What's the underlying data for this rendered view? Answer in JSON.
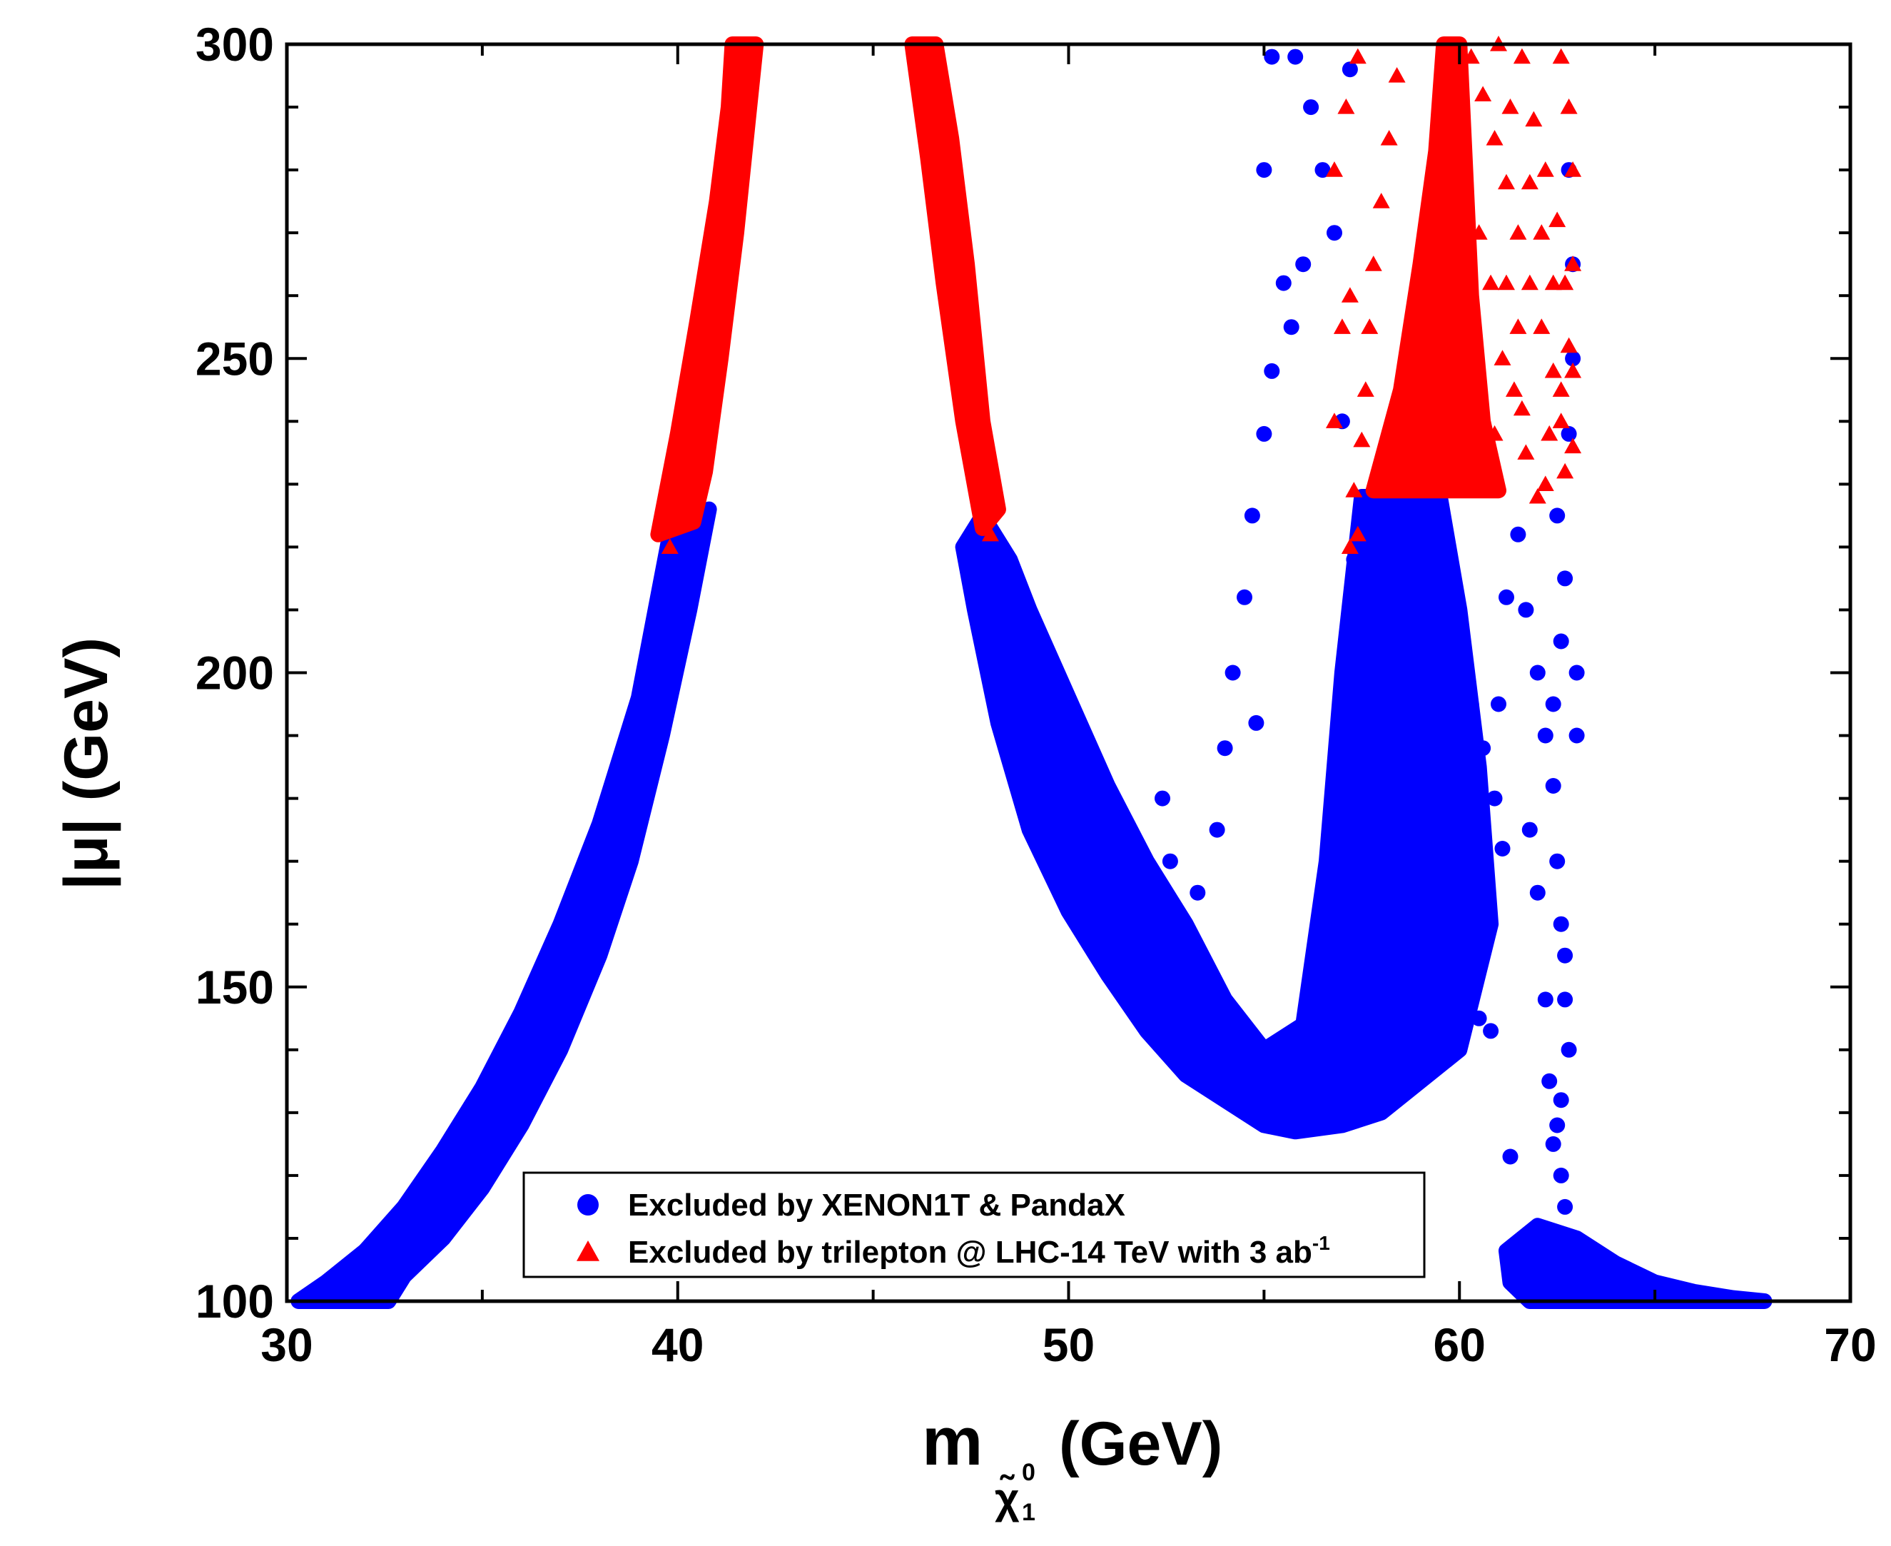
{
  "chart_data": {
    "type": "scatter",
    "xlabel": {
      "main": "m",
      "subscript_symbol": "χ̃",
      "subscript_super": "0",
      "subscript_sub": "1",
      "unit": "(GeV)"
    },
    "ylabel": "|μ| (GeV)",
    "xlim": [
      30,
      70
    ],
    "ylim": [
      100,
      300
    ],
    "x_ticks": [
      30,
      40,
      50,
      60,
      70
    ],
    "y_ticks": [
      100,
      150,
      200,
      250,
      300
    ],
    "x_minor_step": 5,
    "y_minor_step": 10,
    "legend_position": "bottom-center",
    "series": [
      {
        "name": "Excluded by XENON1T & PandaX",
        "legend_label": "Excluded by XENON1T & PandaX",
        "marker": "circle",
        "color": "#0000ff",
        "regions": [
          {
            "name": "left-band",
            "points": [
              [
                30.3,
                100
              ],
              [
                31,
                103
              ],
              [
                32,
                108
              ],
              [
                33,
                115
              ],
              [
                34,
                124
              ],
              [
                35,
                134
              ],
              [
                36,
                146
              ],
              [
                37,
                160
              ],
              [
                38,
                176
              ],
              [
                39,
                196
              ],
              [
                39.8,
                222
              ],
              [
                40.5,
                224
              ],
              [
                40.8,
                226
              ],
              [
                40.3,
                210
              ],
              [
                39.6,
                190
              ],
              [
                38.8,
                170
              ],
              [
                38,
                155
              ],
              [
                37,
                140
              ],
              [
                36,
                128
              ],
              [
                35,
                118
              ],
              [
                34,
                110
              ],
              [
                33,
                104
              ],
              [
                32.6,
                100
              ]
            ]
          },
          {
            "name": "middle-band",
            "points": [
              [
                47.8,
                225
              ],
              [
                48.5,
                218
              ],
              [
                49,
                210
              ],
              [
                50,
                196
              ],
              [
                51,
                182
              ],
              [
                52,
                170
              ],
              [
                53,
                160
              ],
              [
                54,
                148
              ],
              [
                55,
                140
              ],
              [
                56,
                144
              ],
              [
                56.6,
                170
              ],
              [
                57,
                200
              ],
              [
                57.5,
                228
              ],
              [
                59.5,
                228
              ],
              [
                60,
                210
              ],
              [
                60.5,
                185
              ],
              [
                60.8,
                160
              ],
              [
                60,
                140
              ],
              [
                58,
                130
              ],
              [
                57,
                128
              ],
              [
                55.8,
                127
              ],
              [
                55,
                128
              ],
              [
                54,
                132
              ],
              [
                53,
                136
              ],
              [
                52,
                143
              ],
              [
                51,
                152
              ],
              [
                50,
                162
              ],
              [
                49,
                175
              ],
              [
                48.2,
                192
              ],
              [
                47.6,
                210
              ],
              [
                47.3,
                220
              ]
            ]
          },
          {
            "name": "right-tail",
            "points": [
              [
                61.2,
                108
              ],
              [
                62,
                112
              ],
              [
                63,
                110
              ],
              [
                64,
                106
              ],
              [
                65,
                103
              ],
              [
                66,
                101.5
              ],
              [
                67,
                100.5
              ],
              [
                67.8,
                100
              ],
              [
                61.8,
                100
              ],
              [
                61.3,
                103
              ]
            ]
          }
        ],
        "scatter_points": [
          [
            53.3,
            165
          ],
          [
            53.8,
            175
          ],
          [
            54,
            188
          ],
          [
            54.2,
            200
          ],
          [
            54.5,
            212
          ],
          [
            54.7,
            225
          ],
          [
            55,
            238
          ],
          [
            55.2,
            248
          ],
          [
            55.5,
            262
          ],
          [
            55,
            280
          ],
          [
            55.2,
            298
          ],
          [
            55.8,
            298
          ],
          [
            56.2,
            290
          ],
          [
            56.5,
            280
          ],
          [
            56.8,
            270
          ],
          [
            57.2,
            296
          ],
          [
            56,
            265
          ],
          [
            55.7,
            255
          ],
          [
            57,
            240
          ],
          [
            54.8,
            192
          ],
          [
            52.6,
            170
          ],
          [
            52.4,
            180
          ],
          [
            53.1,
            152
          ],
          [
            57.3,
            218
          ],
          [
            58,
            210
          ],
          [
            58.3,
            195
          ],
          [
            58.5,
            180
          ],
          [
            58.7,
            165
          ],
          [
            59,
            150
          ],
          [
            59.2,
            160
          ],
          [
            59.5,
            172
          ],
          [
            59.7,
            185
          ],
          [
            60,
            170
          ],
          [
            60.2,
            158
          ],
          [
            60.5,
            145
          ],
          [
            60.8,
            143
          ],
          [
            61,
            195
          ],
          [
            61.2,
            212
          ],
          [
            61.5,
            222
          ],
          [
            61.7,
            210
          ],
          [
            62,
            200
          ],
          [
            62.2,
            190
          ],
          [
            62.4,
            182
          ],
          [
            62.5,
            170
          ],
          [
            62.6,
            160
          ],
          [
            62.7,
            155
          ],
          [
            62.7,
            148
          ],
          [
            62.8,
            140
          ],
          [
            62.6,
            132
          ],
          [
            62.5,
            128
          ],
          [
            61.3,
            123
          ],
          [
            61.8,
            175
          ],
          [
            62,
            165
          ],
          [
            62.2,
            148
          ],
          [
            62.3,
            135
          ],
          [
            62.4,
            125
          ],
          [
            62.6,
            120
          ],
          [
            62.7,
            115
          ],
          [
            62.4,
            195
          ],
          [
            62.6,
            205
          ],
          [
            62.7,
            215
          ],
          [
            62.5,
            225
          ],
          [
            62.8,
            238
          ],
          [
            62.9,
            250
          ],
          [
            62.9,
            265
          ],
          [
            62.8,
            280
          ],
          [
            63,
            200
          ],
          [
            63,
            190
          ],
          [
            59.3,
            228
          ],
          [
            59.6,
            215
          ],
          [
            59.9,
            205
          ],
          [
            60.3,
            195
          ],
          [
            60.6,
            188
          ],
          [
            60.9,
            180
          ],
          [
            61.1,
            172
          ],
          [
            57.7,
            145
          ],
          [
            58,
            138
          ],
          [
            58.2,
            134
          ],
          [
            57.5,
            130
          ],
          [
            57.9,
            155
          ],
          [
            58.4,
            148
          ],
          [
            58.8,
            142
          ],
          [
            59.1,
            138
          ]
        ]
      },
      {
        "name": "Excluded by trilepton @ LHC-14 TeV with 3 ab-1",
        "legend_label": "Excluded by trilepton @ LHC-14 TeV with 3 ab",
        "legend_superscript": "-1",
        "marker": "triangle",
        "color": "#ff0000",
        "regions": [
          {
            "name": "left-column",
            "points": [
              [
                39.5,
                222
              ],
              [
                40,
                238
              ],
              [
                40.5,
                256
              ],
              [
                41,
                275
              ],
              [
                41.3,
                290
              ],
              [
                41.4,
                300
              ],
              [
                42,
                300
              ],
              [
                41.8,
                288
              ],
              [
                41.5,
                270
              ],
              [
                41.1,
                250
              ],
              [
                40.7,
                232
              ],
              [
                40.4,
                224
              ]
            ]
          },
          {
            "name": "middle-column",
            "points": [
              [
                46,
                300
              ],
              [
                46.6,
                300
              ],
              [
                47,
                285
              ],
              [
                47.4,
                265
              ],
              [
                47.8,
                240
              ],
              [
                48.2,
                226
              ],
              [
                47.8,
                223
              ],
              [
                47.3,
                240
              ],
              [
                46.8,
                262
              ],
              [
                46.4,
                282
              ]
            ]
          },
          {
            "name": "right-block",
            "points": [
              [
                57.8,
                229
              ],
              [
                58.5,
                245
              ],
              [
                59,
                265
              ],
              [
                59.4,
                283
              ],
              [
                59.6,
                300
              ],
              [
                60,
                300
              ],
              [
                60.3,
                260
              ],
              [
                60.6,
                240
              ],
              [
                61,
                229
              ],
              [
                59.5,
                229
              ]
            ]
          }
        ],
        "scatter_points": [
          [
            57.3,
            229
          ],
          [
            57.5,
            237
          ],
          [
            57.6,
            245
          ],
          [
            57.7,
            255
          ],
          [
            57.8,
            265
          ],
          [
            58,
            275
          ],
          [
            58.2,
            285
          ],
          [
            58.4,
            295
          ],
          [
            57.4,
            222
          ],
          [
            57.2,
            220
          ],
          [
            56.8,
            240
          ],
          [
            57,
            255
          ],
          [
            57.2,
            260
          ],
          [
            56.8,
            280
          ],
          [
            57.4,
            298
          ],
          [
            57.1,
            290
          ],
          [
            60.3,
            298
          ],
          [
            60.6,
            292
          ],
          [
            60.9,
            285
          ],
          [
            61.2,
            278
          ],
          [
            61.5,
            270
          ],
          [
            61.8,
            262
          ],
          [
            62.1,
            255
          ],
          [
            62.4,
            248
          ],
          [
            62.6,
            240
          ],
          [
            62.7,
            232
          ],
          [
            60.5,
            270
          ],
          [
            60.8,
            262
          ],
          [
            61.1,
            250
          ],
          [
            61.4,
            245
          ],
          [
            61.7,
            235
          ],
          [
            62,
            228
          ],
          [
            62.3,
            238
          ],
          [
            60.2,
            245
          ],
          [
            60.4,
            235
          ],
          [
            61,
            300
          ],
          [
            61.3,
            290
          ],
          [
            61.6,
            298
          ],
          [
            61.9,
            288
          ],
          [
            62.2,
            280
          ],
          [
            62.5,
            272
          ],
          [
            62.7,
            262
          ],
          [
            62.8,
            252
          ],
          [
            62.8,
            290
          ],
          [
            62.6,
            298
          ],
          [
            62.9,
            280
          ],
          [
            62.9,
            265
          ],
          [
            62.4,
            262
          ],
          [
            62.1,
            270
          ],
          [
            61.8,
            278
          ],
          [
            61.5,
            255
          ],
          [
            61.2,
            262
          ],
          [
            60.9,
            238
          ],
          [
            61.6,
            242
          ],
          [
            62.2,
            230
          ],
          [
            62.6,
            245
          ],
          [
            62.9,
            236
          ],
          [
            62.9,
            248
          ],
          [
            39.8,
            220
          ],
          [
            48,
            222
          ]
        ]
      }
    ]
  }
}
